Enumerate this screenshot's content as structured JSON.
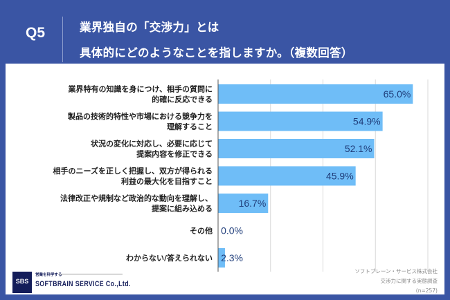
{
  "header": {
    "question": "Q5",
    "title_lines": [
      "業界独自の「交渉力」とは",
      "具体的にどのようなことを指しますか。（複数回答）"
    ]
  },
  "chart_data": {
    "type": "bar",
    "orientation": "horizontal",
    "categories": [
      [
        "業界特有の知識を身につけ、相手の質問に",
        "的確に反応できる"
      ],
      [
        "製品の技術的特性や市場における競争力を",
        "理解すること"
      ],
      [
        "状況の変化に対応し、必要に応じて",
        "提案内容を修正できる"
      ],
      [
        "相手のニーズを正しく把握し、双方が得られる",
        "利益の最大化を目指すこと"
      ],
      [
        "法律改正や規制など政治的な動向を理解し、",
        "提案に組み込める"
      ],
      [
        "その他"
      ],
      [
        "わからない/答えられない"
      ]
    ],
    "values": [
      65.0,
      54.9,
      52.1,
      45.9,
      16.7,
      0.0,
      2.3
    ],
    "value_labels": [
      "65.0%",
      "54.9%",
      "52.1%",
      "45.9%",
      "16.7%",
      "0.0%",
      "2.3%"
    ],
    "xlim": [
      0,
      70
    ],
    "grid": true,
    "bar_color": "#6fbdf7",
    "label_color": "#1f3d7a"
  },
  "footer": {
    "logo_mark": "SBS",
    "logo_tagline": "営業を科学する",
    "logo_name": "SOFTBRAIN SERVICE Co.,Ltd.",
    "source_lines": [
      "ソフトブレーン・サービス株式会社",
      "交渉力に関する実態調査",
      "(n=257)"
    ]
  },
  "colors": {
    "header_bg": "#3a55a4",
    "panel_bg": "#ffffff"
  }
}
